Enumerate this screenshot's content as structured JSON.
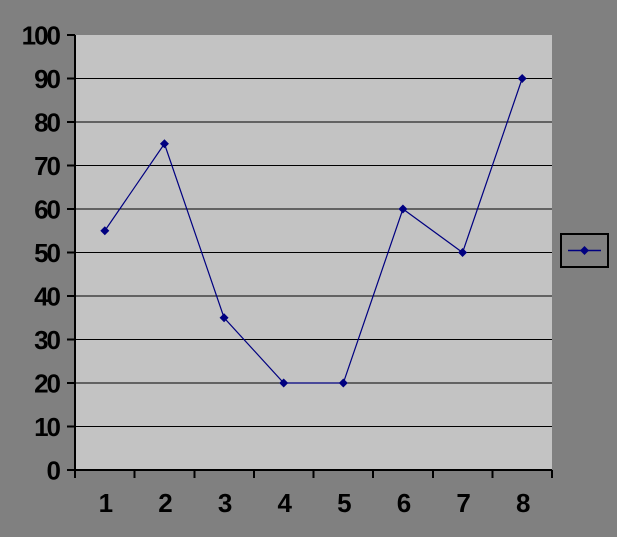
{
  "colors": {
    "background": "#808080",
    "plot_background": "#c3c3c3",
    "gridline": "#000000",
    "axis": "#000000",
    "tick": "#000000",
    "label_text": "#000000",
    "series": "#000080",
    "legend_fill": "#808080",
    "legend_border": "#000000"
  },
  "chart_data": {
    "type": "line",
    "title": "",
    "xlabel": "",
    "ylabel": "",
    "categories": [
      "1",
      "2",
      "3",
      "4",
      "5",
      "6",
      "7",
      "8"
    ],
    "series": [
      {
        "name": "",
        "values": [
          55,
          75,
          35,
          20,
          20,
          60,
          50,
          90
        ],
        "color": "#000080",
        "marker": "diamond"
      }
    ],
    "ylim": [
      0,
      100
    ],
    "yticks": [
      0,
      10,
      20,
      30,
      40,
      50,
      60,
      70,
      80,
      90,
      100
    ],
    "ytick_labels": [
      "0",
      "10",
      "20",
      "30",
      "40",
      "50",
      "60",
      "70",
      "80",
      "90",
      "100"
    ],
    "grid": true,
    "gridlines": "horizontal",
    "legend_position": "right-middle",
    "legend_entries": [
      {
        "label": "",
        "marker": "diamond",
        "color": "#000080"
      }
    ]
  }
}
